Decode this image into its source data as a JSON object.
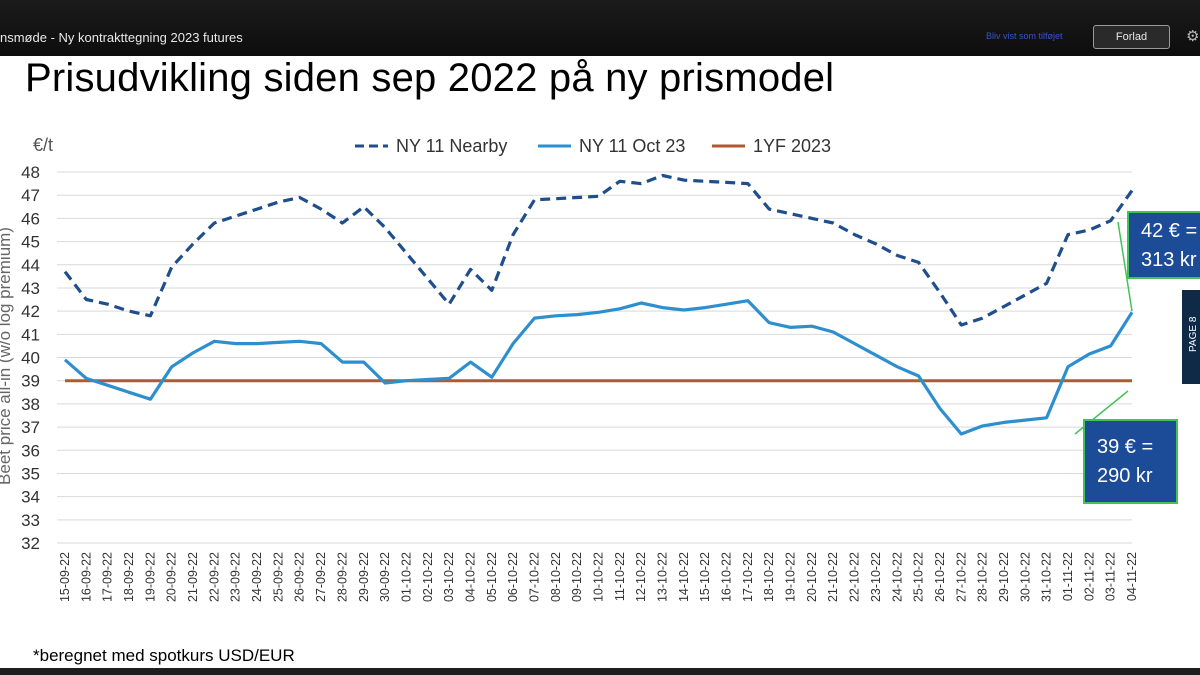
{
  "window": {
    "meeting_title": "nsmøde - Ny kontrakttegning 2023 futures",
    "faint_link": "Bliv vist som tilføjet",
    "leave_label": "Forlad",
    "settings_icon": "gear-icon"
  },
  "slide": {
    "title": "Prisudvikling siden sep 2022 på ny prismodel",
    "footnote": "*beregnet med spotkurs USD/EUR",
    "side_tab_label": "PAGE 8"
  },
  "callouts": {
    "top": {
      "line1": "42 € =",
      "line2": "313 kr"
    },
    "bottom": {
      "line1": "39 € =",
      "line2": "290 kr"
    }
  },
  "colors": {
    "nearby": "#1f4e8c",
    "oct23": "#2e8fcf",
    "yf2023": "#b05a34",
    "callout_bg": "#1c4c97",
    "callout_border": "#44c25a"
  },
  "chart_data": {
    "type": "line",
    "unit_label": "€/t",
    "ylabel": "Beet price all-in (w/o log premium)",
    "ylim": [
      32,
      48
    ],
    "yticks": [
      32,
      33,
      34,
      35,
      36,
      37,
      38,
      39,
      40,
      41,
      42,
      43,
      44,
      45,
      46,
      47,
      48
    ],
    "grid": true,
    "legend_position": "top",
    "categories": [
      "15-09-22",
      "16-09-22",
      "17-09-22",
      "18-09-22",
      "19-09-22",
      "20-09-22",
      "21-09-22",
      "22-09-22",
      "23-09-22",
      "24-09-22",
      "25-09-22",
      "26-09-22",
      "27-09-22",
      "28-09-22",
      "29-09-22",
      "30-09-22",
      "01-10-22",
      "02-10-22",
      "03-10-22",
      "04-10-22",
      "05-10-22",
      "06-10-22",
      "07-10-22",
      "08-10-22",
      "09-10-22",
      "10-10-22",
      "11-10-22",
      "12-10-22",
      "13-10-22",
      "14-10-22",
      "15-10-22",
      "16-10-22",
      "17-10-22",
      "18-10-22",
      "19-10-22",
      "20-10-22",
      "21-10-22",
      "22-10-22",
      "23-10-22",
      "24-10-22",
      "25-10-22",
      "26-10-22",
      "27-10-22",
      "28-10-22",
      "29-10-22",
      "30-10-22",
      "31-10-22",
      "01-11-22",
      "02-11-22",
      "03-11-22",
      "04-11-22"
    ],
    "series": [
      {
        "name": "NY 11 Nearby",
        "style": "dashed",
        "values": [
          43.7,
          42.5,
          42.3,
          42.0,
          41.8,
          43.9,
          44.9,
          45.8,
          46.1,
          46.4,
          46.7,
          46.9,
          46.4,
          45.8,
          46.5,
          45.6,
          44.5,
          43.4,
          42.3,
          43.8,
          42.9,
          45.3,
          46.8,
          46.85,
          46.9,
          46.95,
          47.6,
          47.5,
          47.85,
          47.65,
          47.6,
          47.55,
          47.5,
          46.4,
          46.2,
          46.0,
          45.8,
          45.3,
          44.9,
          44.4,
          44.1,
          42.8,
          41.4,
          41.7,
          42.2,
          42.7,
          43.2,
          45.3,
          45.5,
          45.9,
          47.2
        ]
      },
      {
        "name": "NY 11 Oct 23",
        "style": "solid",
        "values": [
          39.9,
          39.1,
          38.8,
          38.5,
          38.2,
          39.6,
          40.2,
          40.7,
          40.6,
          40.6,
          40.65,
          40.7,
          40.6,
          39.8,
          39.8,
          38.9,
          39.0,
          39.05,
          39.1,
          39.8,
          39.15,
          40.6,
          41.7,
          41.8,
          41.85,
          41.95,
          42.1,
          42.35,
          42.15,
          42.05,
          42.15,
          42.3,
          42.45,
          41.5,
          41.3,
          41.35,
          41.1,
          40.6,
          40.1,
          39.6,
          39.2,
          37.8,
          36.7,
          37.05,
          37.2,
          37.3,
          37.4,
          39.6,
          40.15,
          40.5,
          41.95
        ]
      },
      {
        "name": "1YF 2023",
        "style": "solid",
        "values": [
          39,
          39,
          39,
          39,
          39,
          39,
          39,
          39,
          39,
          39,
          39,
          39,
          39,
          39,
          39,
          39,
          39,
          39,
          39,
          39,
          39,
          39,
          39,
          39,
          39,
          39,
          39,
          39,
          39,
          39,
          39,
          39,
          39,
          39,
          39,
          39,
          39,
          39,
          39,
          39,
          39,
          39,
          39,
          39,
          39,
          39,
          39,
          39,
          39,
          39,
          39
        ]
      }
    ]
  }
}
